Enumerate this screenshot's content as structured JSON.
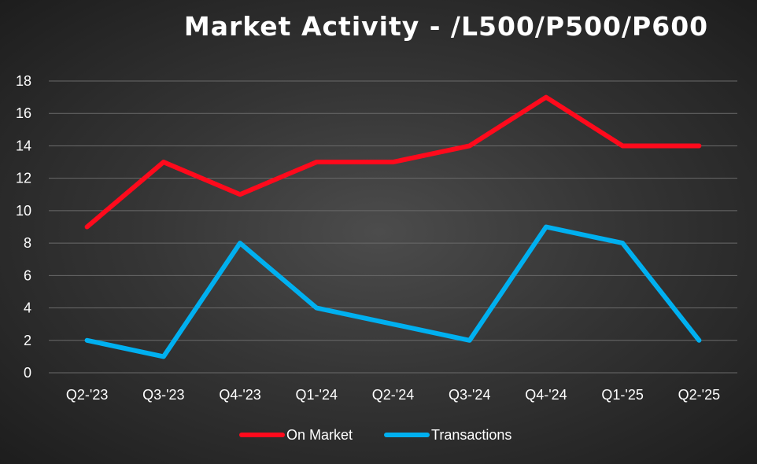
{
  "chart_data": {
    "type": "line",
    "title": "Market Activity - /L500/P500/P600",
    "xlabel": "",
    "ylabel": "",
    "categories": [
      "Q2-'23",
      "Q3-'23",
      "Q4-'23",
      "Q1-'24",
      "Q2-'24",
      "Q3-'24",
      "Q4-'24",
      "Q1-'25",
      "Q2-'25"
    ],
    "ylim": [
      0,
      18
    ],
    "yticks": [
      0,
      2,
      4,
      6,
      8,
      10,
      12,
      14,
      16,
      18
    ],
    "grid": true,
    "legend_position": "bottom",
    "series": [
      {
        "name": "On Market",
        "color": "#ff0a1c",
        "values": [
          9,
          13,
          11,
          13,
          13,
          14,
          17,
          14,
          14
        ]
      },
      {
        "name": "Transactions",
        "color": "#00b0f0",
        "values": [
          2,
          1,
          8,
          4,
          3,
          2,
          9,
          8,
          2
        ]
      }
    ]
  }
}
